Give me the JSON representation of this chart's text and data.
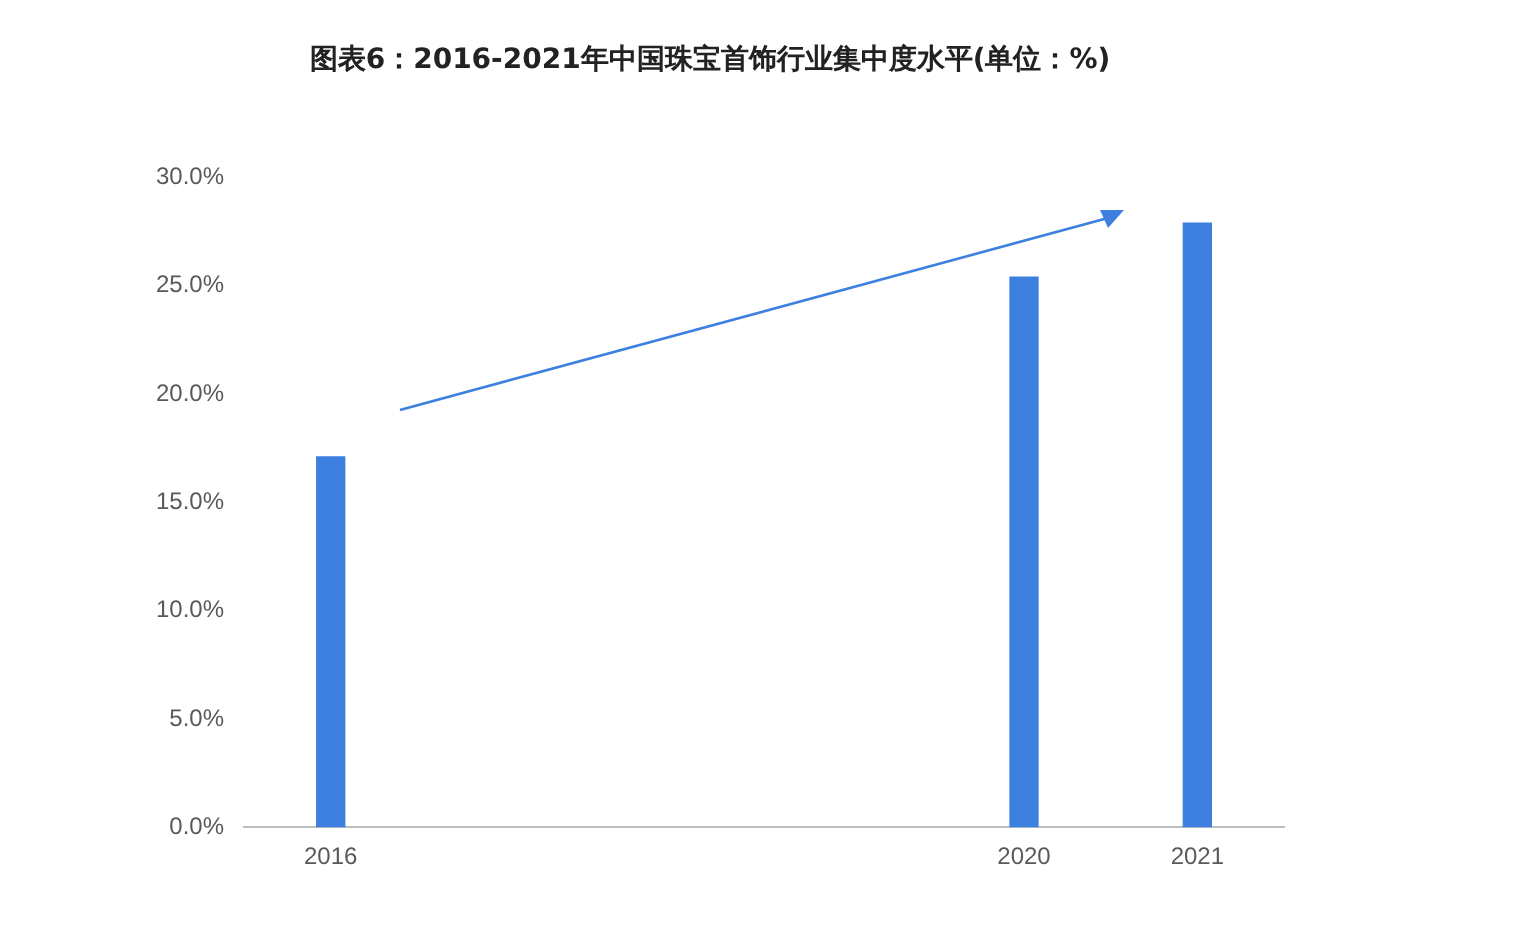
{
  "chart_data": {
    "type": "bar",
    "title": "图表6：2016-2021年中国珠宝首饰行业集中度水平(单位：%)",
    "categories": [
      "2016",
      null,
      null,
      null,
      "2020",
      "2021"
    ],
    "values": [
      17.1,
      null,
      null,
      null,
      25.4,
      27.9
    ],
    "color": "#3d80e0",
    "ylim": [
      0,
      30
    ],
    "yticks": [
      {
        "value": 0,
        "label": "0.0%"
      },
      {
        "value": 5,
        "label": "5.0%"
      },
      {
        "value": 10,
        "label": "10.0%"
      },
      {
        "value": 15,
        "label": "15.0%"
      },
      {
        "value": 20,
        "label": "20.0%"
      },
      {
        "value": 25,
        "label": "25.0%"
      },
      {
        "value": 30,
        "label": "30.0%"
      }
    ],
    "grid": false,
    "legend": false
  }
}
